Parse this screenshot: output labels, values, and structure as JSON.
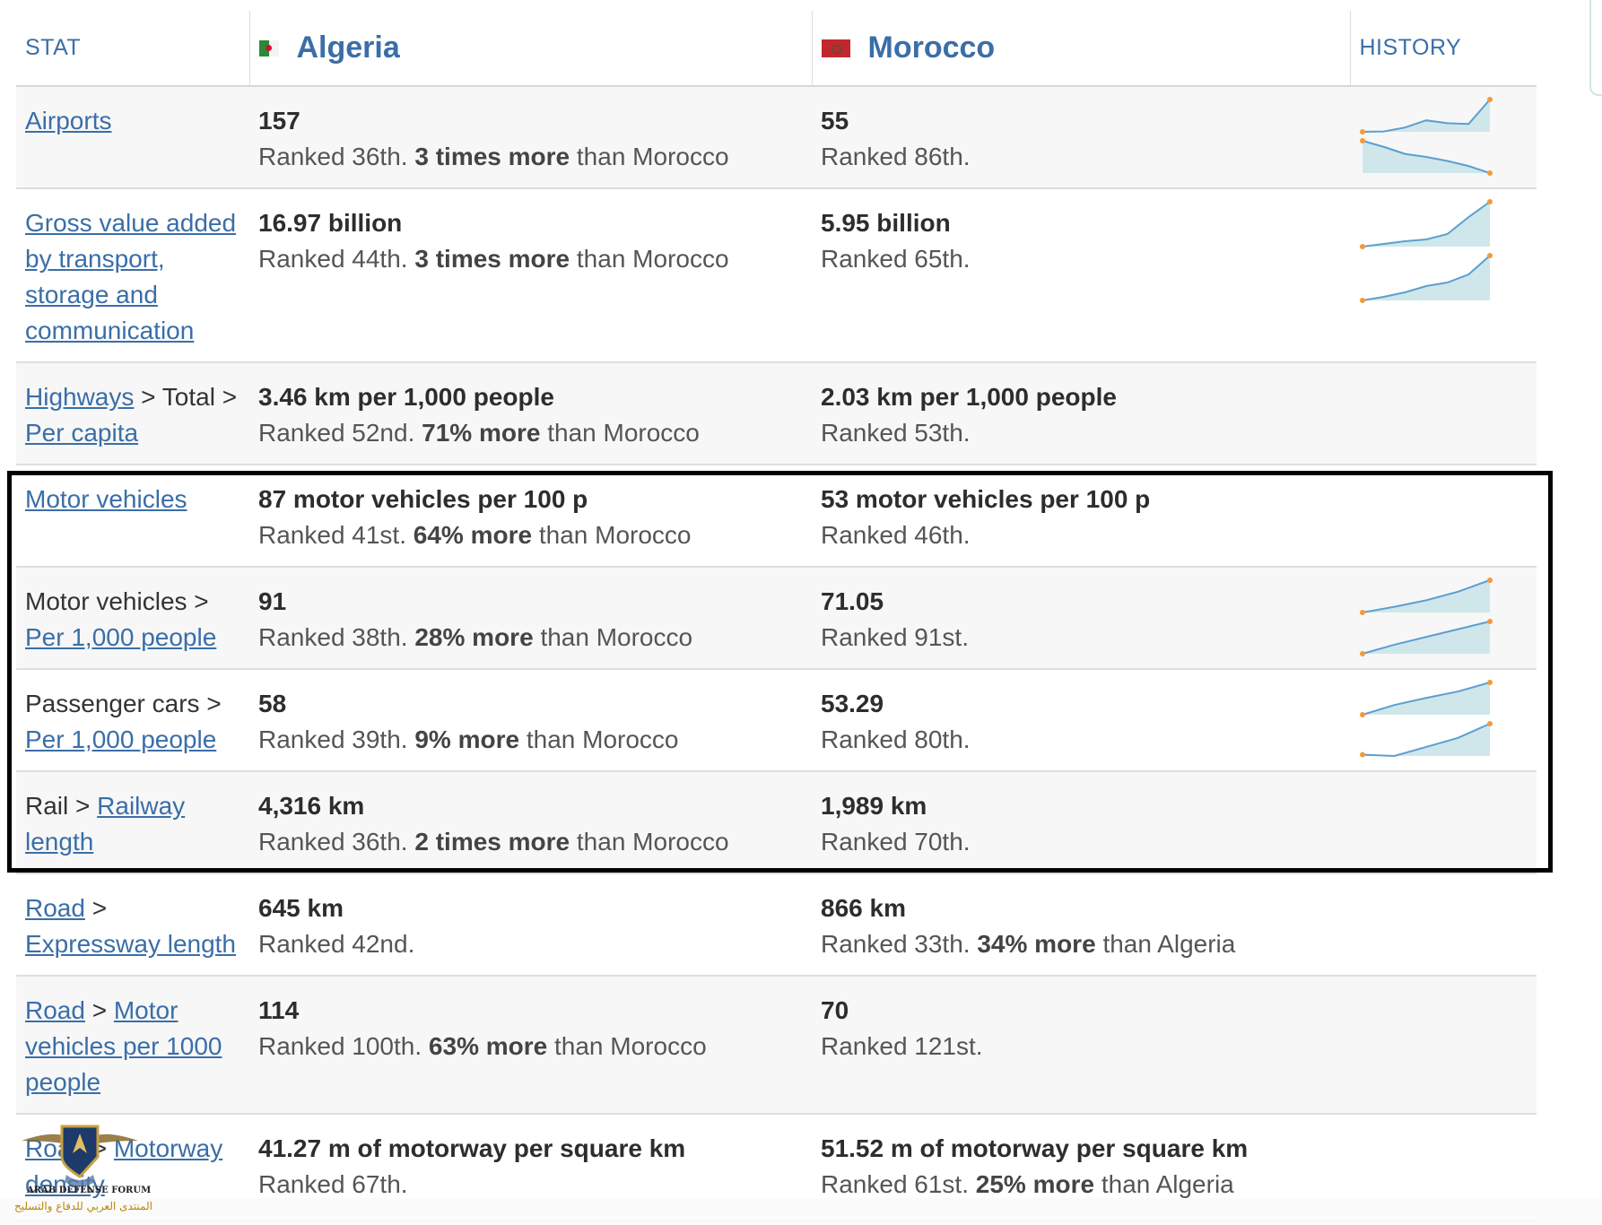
{
  "header": {
    "stat_label": "STAT",
    "country_a": "Algeria",
    "country_b": "Morocco",
    "history_label": "HISTORY"
  },
  "colors": {
    "link": "#3a6ea8",
    "spark_line": "#5b9fd0",
    "spark_fill": "#cfe7ea",
    "spark_dot": "#f29a3b",
    "highlight_border": "#000000"
  },
  "rows": [
    {
      "stat_parts": [
        {
          "text": "Airports",
          "link": true
        }
      ],
      "a_value": "157",
      "a_rank": "Ranked 36th.",
      "a_more": "3 times more",
      "a_than": "than Morocco",
      "b_value": "55",
      "b_rank": "Ranked 86th.",
      "b_more": "",
      "b_than": "",
      "history": [
        [
          1,
          1.05,
          1.6,
          2.6,
          2.2,
          2.1,
          5.5
        ],
        [
          4.2,
          3.6,
          2.9,
          2.6,
          2.2,
          1.7,
          1.0
        ]
      ]
    },
    {
      "stat_parts": [
        {
          "text": "Gross value added by transport, storage and communication",
          "link": true
        }
      ],
      "a_value": "16.97 billion",
      "a_rank": "Ranked 44th.",
      "a_more": "3 times more",
      "a_than": "than Morocco",
      "b_value": "5.95 billion",
      "b_rank": "Ranked 65th.",
      "b_more": "",
      "b_than": "",
      "history": [
        [
          1,
          1.3,
          1.6,
          1.8,
          2.4,
          4.3,
          6
        ],
        [
          1,
          1.4,
          1.9,
          2.6,
          3.0,
          3.9,
          6
        ]
      ]
    },
    {
      "stat_parts": [
        {
          "text": "Highways",
          "link": true
        },
        {
          "text": " > Total > ",
          "link": false
        },
        {
          "text": "Per capita",
          "link": true
        }
      ],
      "a_value": "3.46 km per 1,000 people",
      "a_rank": "Ranked 52nd.",
      "a_more": "71% more",
      "a_than": "than Morocco",
      "b_value": "2.03 km per 1,000 people",
      "b_rank": "Ranked 53th.",
      "b_more": "",
      "b_than": "",
      "history": []
    },
    {
      "stat_parts": [
        {
          "text": "Motor vehicles",
          "link": true
        }
      ],
      "a_value": "87 motor vehicles per 100 p",
      "a_rank": "Ranked 41st.",
      "a_more": "64% more",
      "a_than": "than Morocco",
      "b_value": "53 motor vehicles per 100 p",
      "b_rank": "Ranked 46th.",
      "b_more": "",
      "b_than": "",
      "history": []
    },
    {
      "stat_parts": [
        {
          "text": "Motor vehicles > ",
          "link": false
        },
        {
          "text": "Per 1,000 people",
          "link": true
        }
      ],
      "a_value": "91",
      "a_rank": "Ranked 38th.",
      "a_more": "28% more",
      "a_than": "than Morocco",
      "b_value": "71.05",
      "b_rank": "Ranked 91st.",
      "b_more": "",
      "b_than": "",
      "history": [
        [
          1,
          1.8,
          2.7,
          3.9,
          5.5
        ],
        [
          1,
          2.4,
          3.6,
          4.8,
          6
        ]
      ]
    },
    {
      "stat_parts": [
        {
          "text": "Passenger cars > ",
          "link": false
        },
        {
          "text": "Per 1,000 people",
          "link": true
        }
      ],
      "a_value": "58",
      "a_rank": "Ranked 39th.",
      "a_more": "9% more",
      "a_than": "than Morocco",
      "b_value": "53.29",
      "b_rank": "Ranked 80th.",
      "b_more": "",
      "b_than": "",
      "history": [
        [
          1,
          2.5,
          3.6,
          4.6,
          6
        ],
        [
          1.2,
          1,
          2.4,
          3.8,
          6
        ]
      ]
    },
    {
      "stat_parts": [
        {
          "text": "Rail > ",
          "link": false
        },
        {
          "text": "Railway length",
          "link": true
        }
      ],
      "a_value": "4,316 km",
      "a_rank": "Ranked 36th.",
      "a_more": "2 times more",
      "a_than": "than Morocco",
      "b_value": "1,989 km",
      "b_rank": "Ranked 70th.",
      "b_more": "",
      "b_than": "",
      "history": []
    },
    {
      "stat_parts": [
        {
          "text": "Road",
          "link": true
        },
        {
          "text": " > ",
          "link": false
        },
        {
          "text": "Expressway length",
          "link": true
        }
      ],
      "a_value": "645 km",
      "a_rank": "Ranked 42nd.",
      "a_more": "",
      "a_than": "",
      "b_value": "866 km",
      "b_rank": "Ranked 33th.",
      "b_more": "34% more",
      "b_than": "than Algeria",
      "history": []
    },
    {
      "stat_parts": [
        {
          "text": "Road",
          "link": true
        },
        {
          "text": " > ",
          "link": false
        },
        {
          "text": "Motor vehicles per 1000 people",
          "link": true
        }
      ],
      "a_value": "114",
      "a_rank": "Ranked 100th.",
      "a_more": "63% more",
      "a_than": "than Morocco",
      "b_value": "70",
      "b_rank": "Ranked 121st.",
      "b_more": "",
      "b_than": "",
      "history": []
    },
    {
      "stat_parts": [
        {
          "text": "Road",
          "link": true
        },
        {
          "text": " > ",
          "link": false
        },
        {
          "text": "Motorway density",
          "link": true
        }
      ],
      "a_value": "41.27 m of motorway per square km",
      "a_rank": "Ranked 67th.",
      "a_more": "",
      "a_than": "",
      "b_value": "51.52 m of motorway per square km",
      "b_rank": "Ranked 61st.",
      "b_more": "25% more",
      "b_than": "than Algeria",
      "history": []
    }
  ],
  "watermark": {
    "title": "ARAB DEFENSE FORUM",
    "subtitle": "المنتدى العربي للدفاع والتسليح"
  }
}
